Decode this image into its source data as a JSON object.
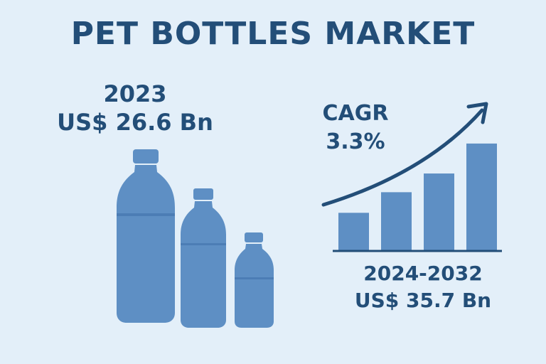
{
  "title": "PET BOTTLES MARKET",
  "left_stat": {
    "year": "2023",
    "value": "US$ 26.6 Bn"
  },
  "cagr": {
    "label": "CAGR",
    "value": "3.3%"
  },
  "right_stat": {
    "period": "2024-2032",
    "value": "US$ 35.7 Bn"
  },
  "colors": {
    "accent": "#5e8fc4",
    "text": "#234e78",
    "background": "#e3eff9"
  },
  "icons": [
    "bottle-large-icon",
    "bottle-medium-icon",
    "bottle-small-icon",
    "growth-arrow-icon"
  ],
  "chart_data": {
    "type": "bar",
    "categories": [
      "",
      "",
      "",
      ""
    ],
    "values": [
      1.0,
      1.55,
      2.05,
      2.85
    ],
    "ylim": [
      0,
      3
    ],
    "grid": false,
    "legend": "none"
  }
}
